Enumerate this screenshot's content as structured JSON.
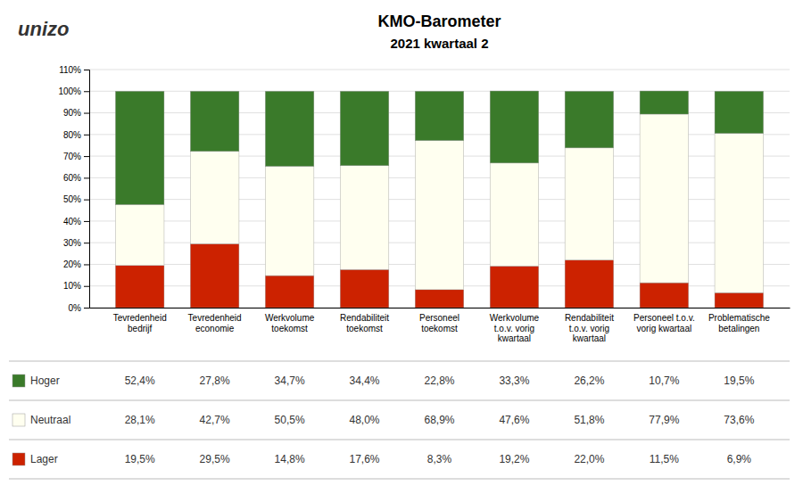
{
  "chart_data": {
    "type": "bar",
    "title": "KMO-Barometer",
    "subtitle": "2021 kwartaal 2",
    "annotations": [
      "unizo"
    ],
    "stacked": true,
    "grid": true,
    "categories": [
      "Tevredenheid\nbedrijf",
      "Tevredenheid\neconomie",
      "Werkvolume\ntoekomst",
      "Rendabiliteit\ntoekomst",
      "Personeel\ntoekomst",
      "Werkvolume\nt.o.v. vorig\nkwartaal",
      "Rendabiliteit\nt.o.v. vorig\nkwartaal",
      "Personeel t.o.v.\nvorig kwartaal",
      "Problematische\nbetalingen"
    ],
    "series": [
      {
        "name": "Lager",
        "color": "#cc2200",
        "values": [
          19.5,
          29.5,
          14.8,
          17.6,
          8.3,
          19.2,
          22.0,
          11.5,
          6.9
        ],
        "value_labels": [
          "19,5%",
          "29,5%",
          "14,8%",
          "17,6%",
          "8,3%",
          "19,2%",
          "22,0%",
          "11,5%",
          "6,9%"
        ]
      },
      {
        "name": "Neutraal",
        "color": "#fffff0",
        "values": [
          28.1,
          42.7,
          50.5,
          48.0,
          68.9,
          47.6,
          51.8,
          77.9,
          73.6
        ],
        "value_labels": [
          "28,1%",
          "42,7%",
          "50,5%",
          "48,0%",
          "68,9%",
          "47,6%",
          "51,8%",
          "77,9%",
          "73,6%"
        ]
      },
      {
        "name": "Hoger",
        "color": "#3a7a2a",
        "values": [
          52.4,
          27.8,
          34.7,
          34.4,
          22.8,
          33.3,
          26.2,
          10.7,
          19.5
        ],
        "value_labels": [
          "52,4%",
          "27,8%",
          "34,7%",
          "34,4%",
          "22,8%",
          "33,3%",
          "26,2%",
          "10,7%",
          "19,5%"
        ]
      }
    ],
    "ylim": [
      0,
      110
    ],
    "yticks": [
      {
        "value": 0,
        "label": "0%"
      },
      {
        "value": 10,
        "label": "10%"
      },
      {
        "value": 20,
        "label": "20%"
      },
      {
        "value": 30,
        "label": "30%"
      },
      {
        "value": 40,
        "label": "40%"
      },
      {
        "value": 50,
        "label": "50%"
      },
      {
        "value": 60,
        "label": "60%"
      },
      {
        "value": 70,
        "label": "70%"
      },
      {
        "value": 80,
        "label": "80%"
      },
      {
        "value": 90,
        "label": "90%"
      },
      {
        "value": 100,
        "label": "100%"
      },
      {
        "value": 110,
        "label": "110%"
      }
    ]
  }
}
